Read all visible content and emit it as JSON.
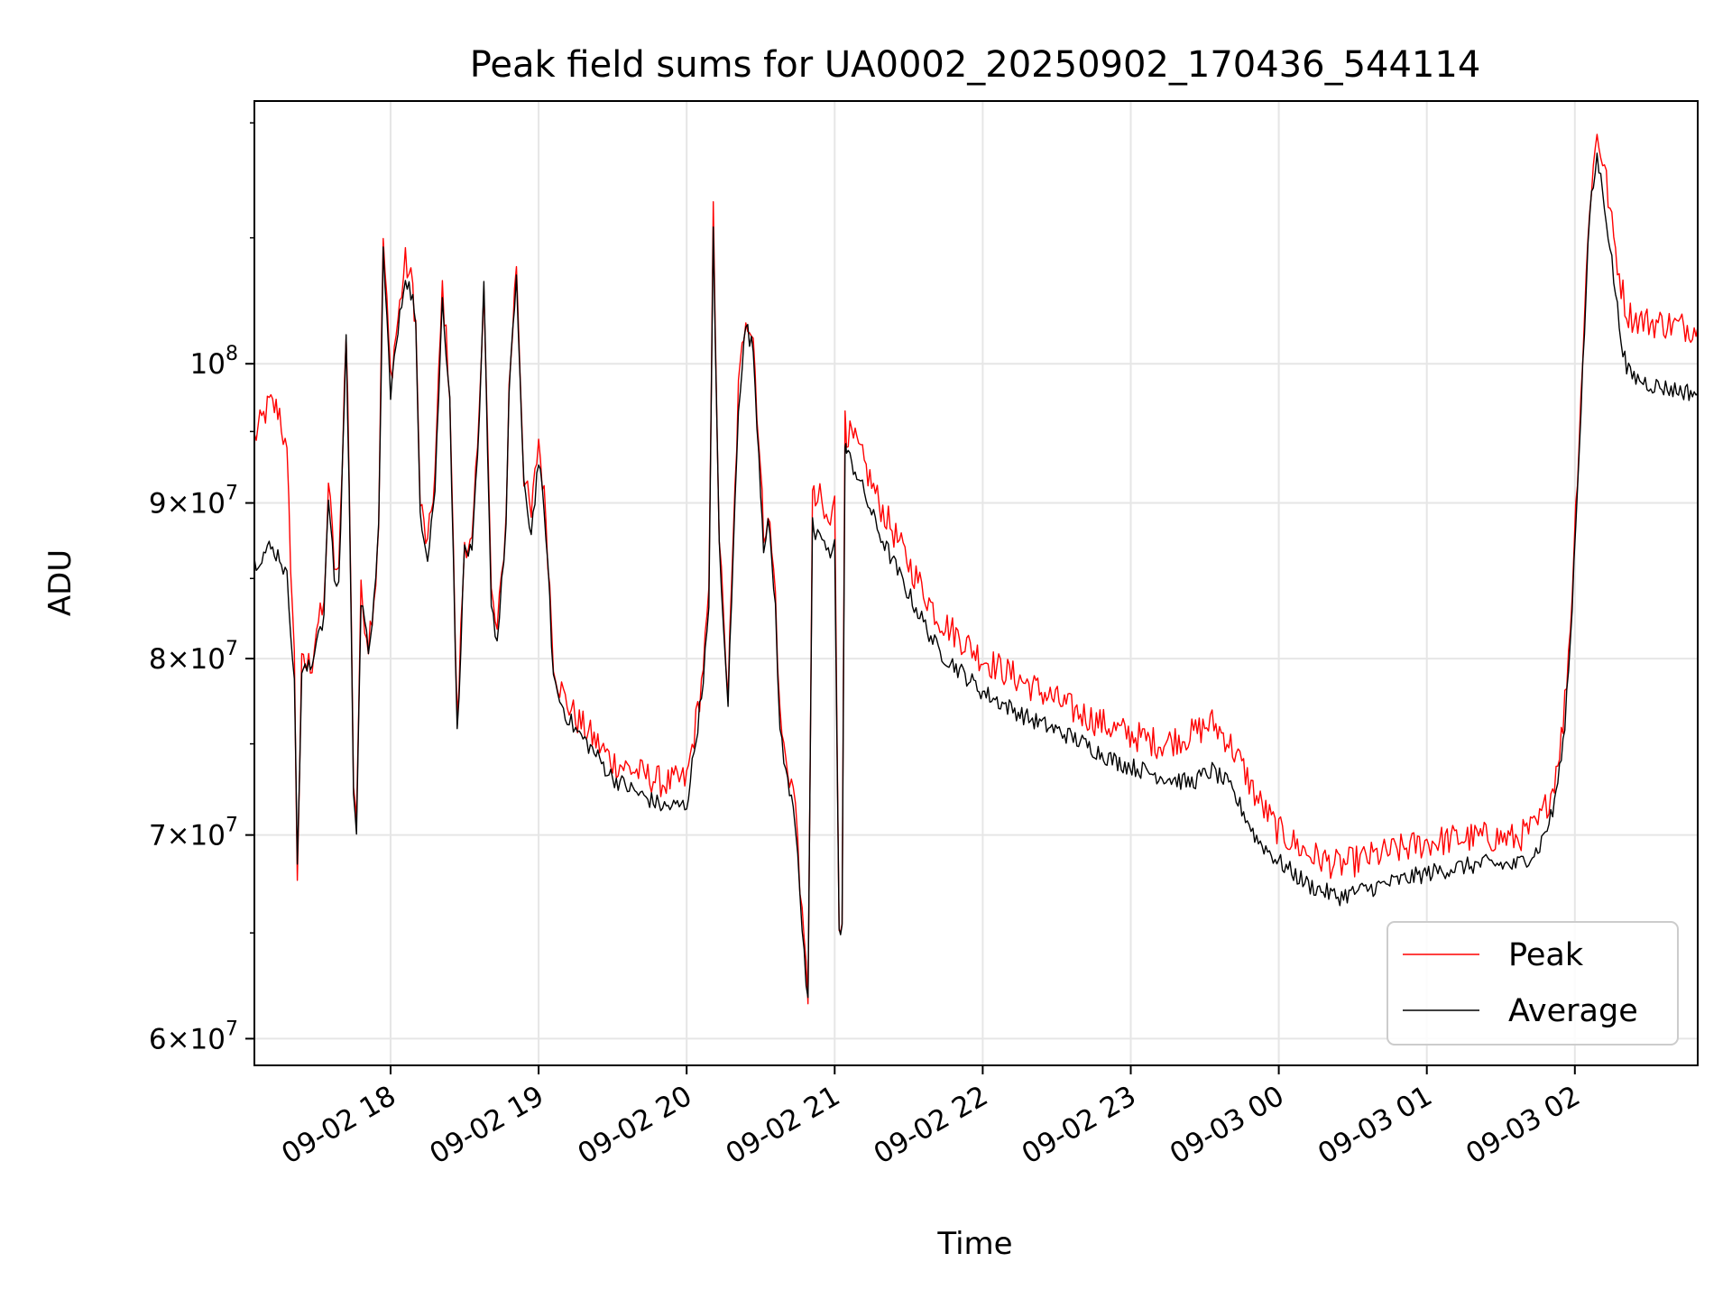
{
  "chart_data": {
    "type": "line",
    "title": "Peak field sums for UA0002_20250902_170436_544114",
    "xlabel": "Time",
    "ylabel": "ADU",
    "yscale": "log",
    "xlim_hours": [
      17.08,
      26.83
    ],
    "ylim": [
      58800000,
      122000000
    ],
    "grid": true,
    "legend_position": "lower-right",
    "x_ticks": [
      {
        "h": 18,
        "label": "09-02 18"
      },
      {
        "h": 19,
        "label": "09-02 19"
      },
      {
        "h": 20,
        "label": "09-02 20"
      },
      {
        "h": 21,
        "label": "09-02 21"
      },
      {
        "h": 22,
        "label": "09-02 22"
      },
      {
        "h": 23,
        "label": "09-02 23"
      },
      {
        "h": 24,
        "label": "09-03 00"
      },
      {
        "h": 25,
        "label": "09-03 01"
      },
      {
        "h": 26,
        "label": "09-03 02"
      }
    ],
    "y_ticks": [
      {
        "v": 60000000,
        "mant": "6",
        "base": "10",
        "exp": "7"
      },
      {
        "v": 70000000,
        "mant": "7",
        "base": "10",
        "exp": "7"
      },
      {
        "v": 80000000,
        "mant": "8",
        "base": "10",
        "exp": "7"
      },
      {
        "v": 90000000,
        "mant": "9",
        "base": "10",
        "exp": "7"
      },
      {
        "v": 100000000,
        "mant": "",
        "base": "10",
        "exp": "8"
      }
    ],
    "series": [
      {
        "name": "Peak",
        "color": "#ff0000",
        "x_hours": [
          17.08,
          17.18,
          17.25,
          17.3,
          17.35,
          17.37,
          17.4,
          17.47,
          17.5,
          17.55,
          17.58,
          17.62,
          17.65,
          17.7,
          17.72,
          17.75,
          17.77,
          17.8,
          17.85,
          17.9,
          17.92,
          17.95,
          18.0,
          18.1,
          18.15,
          18.17,
          18.2,
          18.25,
          18.3,
          18.35,
          18.4,
          18.45,
          18.5,
          18.55,
          18.6,
          18.63,
          18.68,
          18.72,
          18.75,
          18.78,
          18.8,
          18.85,
          18.9,
          18.95,
          19.0,
          19.05,
          19.1,
          19.13,
          19.18,
          19.22,
          19.25,
          19.35,
          19.5,
          19.7,
          19.85,
          20.0,
          20.05,
          20.1,
          20.15,
          20.18,
          20.22,
          20.25,
          20.28,
          20.35,
          20.4,
          20.45,
          20.5,
          20.52,
          20.55,
          20.6,
          20.63,
          20.67,
          20.72,
          20.75,
          20.78,
          20.82,
          20.85,
          20.87,
          20.9,
          20.93,
          20.97,
          21.0,
          21.03,
          21.05,
          21.07,
          21.08,
          21.15,
          21.3,
          21.5,
          21.7,
          22.0,
          22.3,
          22.6,
          22.9,
          23.2,
          23.4,
          23.55,
          23.65,
          23.75,
          23.85,
          24.0,
          24.2,
          24.4,
          24.6,
          24.8,
          25.0,
          25.2,
          25.4,
          25.6,
          25.75,
          25.85,
          25.92,
          25.97,
          26.03,
          26.1,
          26.15,
          26.2,
          26.25,
          26.3,
          26.35,
          26.4,
          26.5,
          26.6,
          26.7,
          26.83
        ],
        "y": [
          94500000,
          97000000,
          96500000,
          93000000,
          80000000,
          68000000,
          79500000,
          79800000,
          82000000,
          83000000,
          91500000,
          86000000,
          85000000,
          103000000,
          92000000,
          73000000,
          71000000,
          84000000,
          81000000,
          85000000,
          89000000,
          110000000,
          99000000,
          108000000,
          106000000,
          103000000,
          90000000,
          87000000,
          92000000,
          106000000,
          98000000,
          76000000,
          87500000,
          87000000,
          96000000,
          107000000,
          84000000,
          81500000,
          85000000,
          89000000,
          98000000,
          108000000,
          92000000,
          89000000,
          94500000,
          89000000,
          80000000,
          78700000,
          77500000,
          77000000,
          76500000,
          75500000,
          74000000,
          73300000,
          72800000,
          73000000,
          75500000,
          78500000,
          83500000,
          112000000,
          88000000,
          82000000,
          78000000,
          98000000,
          104000000,
          102000000,
          92000000,
          88000000,
          89500000,
          84000000,
          76500000,
          74000000,
          72500000,
          70000000,
          65500000,
          62000000,
          90500000,
          90000000,
          90300000,
          89000000,
          88500000,
          90000000,
          65500000,
          66000000,
          96500000,
          95000000,
          94000000,
          90000000,
          86000000,
          82500000,
          80000000,
          78500000,
          77000000,
          75800000,
          75000000,
          75500000,
          76200000,
          75300000,
          73800000,
          72000000,
          70200000,
          69000000,
          68400000,
          68800000,
          69200000,
          69600000,
          69800000,
          69900000,
          69800000,
          70500000,
          72500000,
          76000000,
          82000000,
          95000000,
          113000000,
          119000000,
          116000000,
          111000000,
          107000000,
          104000000,
          103500000,
          103200000,
          103100000,
          102900000,
          102800000
        ]
      },
      {
        "name": "Average",
        "color": "#000000",
        "x_hours": [
          17.08,
          17.18,
          17.25,
          17.3,
          17.35,
          17.37,
          17.4,
          17.47,
          17.5,
          17.55,
          17.58,
          17.62,
          17.65,
          17.7,
          17.72,
          17.75,
          17.77,
          17.8,
          17.85,
          17.9,
          17.92,
          17.95,
          18.0,
          18.1,
          18.15,
          18.17,
          18.2,
          18.25,
          18.3,
          18.35,
          18.4,
          18.45,
          18.5,
          18.55,
          18.6,
          18.63,
          18.68,
          18.72,
          18.75,
          18.78,
          18.8,
          18.85,
          18.9,
          18.95,
          19.0,
          19.05,
          19.1,
          19.13,
          19.18,
          19.22,
          19.25,
          19.35,
          19.5,
          19.7,
          19.85,
          20.0,
          20.05,
          20.1,
          20.15,
          20.18,
          20.22,
          20.25,
          20.28,
          20.35,
          20.4,
          20.45,
          20.5,
          20.52,
          20.55,
          20.6,
          20.63,
          20.67,
          20.72,
          20.75,
          20.78,
          20.82,
          20.85,
          20.87,
          20.9,
          20.93,
          20.97,
          21.0,
          21.03,
          21.05,
          21.07,
          21.08,
          21.15,
          21.3,
          21.5,
          21.7,
          22.0,
          22.3,
          22.6,
          22.9,
          23.2,
          23.4,
          23.55,
          23.65,
          23.75,
          23.85,
          24.0,
          24.2,
          24.4,
          24.6,
          24.8,
          25.0,
          25.2,
          25.4,
          25.6,
          25.75,
          25.85,
          25.92,
          25.97,
          26.03,
          26.1,
          26.15,
          26.2,
          26.25,
          26.3,
          26.35,
          26.4,
          26.5,
          26.6,
          26.7,
          26.83
        ],
        "y": [
          86000000,
          87000000,
          86500000,
          85000000,
          79000000,
          68500000,
          79200000,
          79500000,
          81500000,
          82500000,
          90500000,
          85000000,
          84500000,
          102000000,
          91000000,
          72500000,
          70500000,
          83500000,
          80500000,
          84500000,
          88500000,
          109000000,
          98000000,
          107000000,
          105000000,
          102500000,
          89500000,
          86500000,
          91000000,
          105000000,
          97500000,
          75500000,
          87000000,
          86500000,
          95500000,
          106000000,
          83500000,
          81000000,
          84500000,
          88500000,
          97500000,
          107000000,
          91000000,
          88000000,
          93000000,
          88000000,
          79000000,
          77800000,
          76800000,
          76200000,
          75800000,
          74800000,
          73100000,
          72100000,
          71500000,
          71600000,
          74500000,
          77800000,
          82800000,
          111000000,
          87000000,
          81500000,
          77500000,
          97000000,
          103000000,
          101000000,
          91000000,
          87200000,
          88800000,
          83200000,
          75800000,
          73300000,
          71800000,
          69300000,
          65000000,
          61500000,
          88500000,
          87800000,
          88000000,
          87000000,
          86500000,
          88000000,
          65000000,
          65200000,
          94500000,
          93500000,
          92000000,
          88000000,
          84000000,
          80500000,
          78000000,
          76500000,
          75400000,
          74000000,
          73200000,
          72800000,
          73500000,
          72800000,
          71400000,
          69800000,
          68600000,
          67400000,
          66800000,
          67200000,
          67600000,
          68000000,
          68300000,
          68500000,
          68400000,
          69200000,
          71200000,
          74800000,
          81000000,
          94000000,
          112000000,
          117000000,
          113000000,
          108000000,
          103000000,
          99500000,
          99000000,
          98500000,
          98200000,
          98000000,
          97800000
        ]
      }
    ]
  }
}
